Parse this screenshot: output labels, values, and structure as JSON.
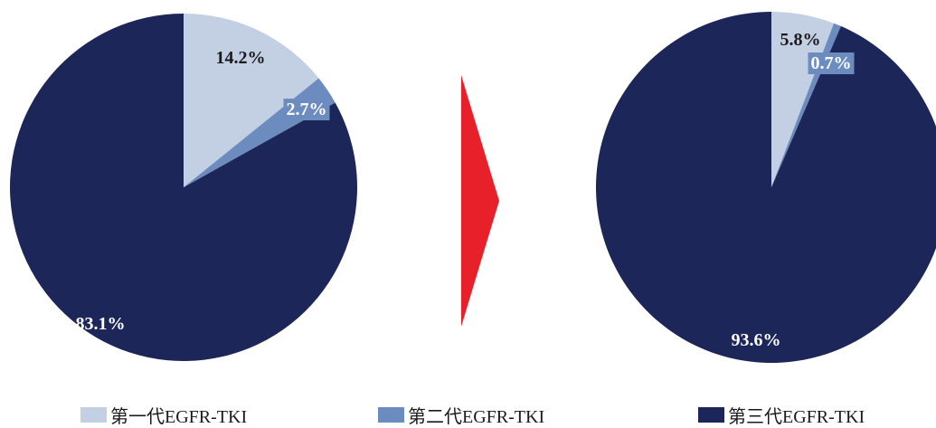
{
  "chart_data": [
    {
      "type": "pie",
      "categories": [
        "第一代EGFR-TKI",
        "第二代EGFR-TKI",
        "第三代EGFR-TKI"
      ],
      "values": [
        14.2,
        2.7,
        83.1
      ],
      "labels": [
        "14.2%",
        "2.7%",
        "83.1%"
      ]
    },
    {
      "type": "pie",
      "categories": [
        "第一代EGFR-TKI",
        "第二代EGFR-TKI",
        "第三代EGFR-TKI"
      ],
      "values": [
        5.8,
        0.7,
        93.6
      ],
      "labels": [
        "5.8%",
        "0.7%",
        "93.6%"
      ]
    }
  ],
  "legend": {
    "placement": "bottom",
    "items": [
      {
        "label": "第一代EGFR-TKI",
        "color": "#c3cfe3"
      },
      {
        "label": "第二代EGFR-TKI",
        "color": "#6c8bbf"
      },
      {
        "label": "第三代EGFR-TKI",
        "color": "#1d2659"
      }
    ]
  },
  "arrow": {
    "color": "#e8202a",
    "direction": "right"
  }
}
